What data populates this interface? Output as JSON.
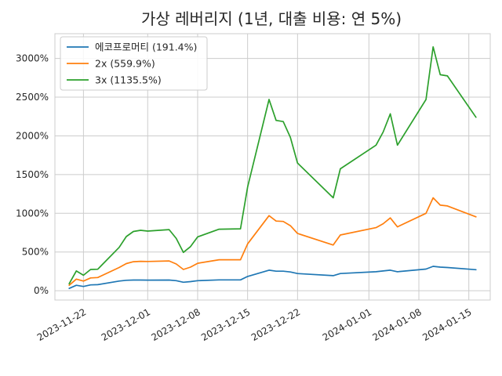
{
  "chart_data": {
    "type": "line",
    "title": "가상 레버리지 (1년, 대출 비용: 연 5%)",
    "xlabel": "",
    "ylabel": "",
    "grid": true,
    "legend": {
      "position": "top-left"
    },
    "xlim": [
      "2023-11-18",
      "2024-01-18"
    ],
    "ylim": [
      -120,
      3320
    ],
    "x_ticks": [
      "2023-11-22",
      "2023-12-01",
      "2023-12-08",
      "2023-12-15",
      "2023-12-22",
      "2024-01-01",
      "2024-01-08",
      "2024-01-15"
    ],
    "y_ticks": [
      0,
      500,
      1000,
      1500,
      2000,
      2500,
      3000
    ],
    "y_tick_labels": [
      "0%",
      "500%",
      "1000%",
      "1500%",
      "2000%",
      "2500%",
      "3000%"
    ],
    "x": [
      "2023-11-20",
      "2023-11-21",
      "2023-11-22",
      "2023-11-23",
      "2023-11-24",
      "2023-11-27",
      "2023-11-28",
      "2023-11-29",
      "2023-11-30",
      "2023-12-01",
      "2023-12-04",
      "2023-12-05",
      "2023-12-06",
      "2023-12-07",
      "2023-12-08",
      "2023-12-11",
      "2023-12-14",
      "2023-12-15",
      "2023-12-18",
      "2023-12-19",
      "2023-12-20",
      "2023-12-21",
      "2023-12-22",
      "2023-12-27",
      "2023-12-28",
      "2024-01-02",
      "2024-01-03",
      "2024-01-04",
      "2024-01-05",
      "2024-01-09",
      "2024-01-10",
      "2024-01-11",
      "2024-01-12",
      "2024-01-16"
    ],
    "series": [
      {
        "name": "에코프로머티 (191.4%)",
        "color": "#1f77b4",
        "values": [
          30,
          70,
          55,
          75,
          78,
          125,
          135,
          138,
          138,
          137,
          138,
          130,
          110,
          118,
          130,
          140,
          140,
          185,
          265,
          252,
          252,
          242,
          222,
          195,
          222,
          245,
          255,
          265,
          245,
          280,
          315,
          305,
          300,
          272
        ]
      },
      {
        "name": "2x (559.9%)",
        "color": "#ff7f0e",
        "values": [
          70,
          150,
          125,
          165,
          170,
          300,
          350,
          375,
          380,
          378,
          385,
          345,
          275,
          305,
          355,
          400,
          400,
          605,
          970,
          900,
          895,
          840,
          740,
          590,
          720,
          815,
          865,
          940,
          825,
          1000,
          1200,
          1105,
          1095,
          955
        ]
      },
      {
        "name": "3x (1135.5%)",
        "color": "#2ca02c",
        "values": [
          90,
          255,
          200,
          275,
          278,
          560,
          700,
          765,
          780,
          770,
          790,
          675,
          495,
          570,
          695,
          795,
          800,
          1340,
          2470,
          2200,
          2185,
          1980,
          1650,
          1200,
          1575,
          1880,
          2050,
          2285,
          1880,
          2470,
          3150,
          2790,
          2775,
          2240
        ]
      }
    ]
  }
}
